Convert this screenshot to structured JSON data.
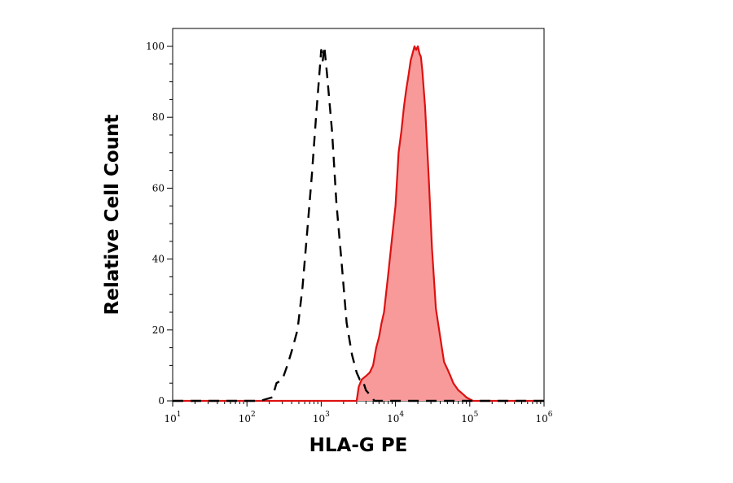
{
  "chart_data": {
    "type": "area",
    "xlabel": "HLA-G PE",
    "ylabel": "Relative Cell Count",
    "x_scale": "log",
    "xlim": [
      10,
      1000000
    ],
    "ylim": [
      0,
      100
    ],
    "y_ticks": [
      "0",
      "20",
      "40",
      "60",
      "80",
      "100"
    ],
    "x_ticks": [
      {
        "base": "10",
        "exp": "1"
      },
      {
        "base": "10",
        "exp": "2"
      },
      {
        "base": "10",
        "exp": "3"
      },
      {
        "base": "10",
        "exp": "4"
      },
      {
        "base": "10",
        "exp": "5"
      },
      {
        "base": "10",
        "exp": "6"
      }
    ],
    "grid": false,
    "legend": "none",
    "colors": {
      "stained_fill": "#f99a9a",
      "stained_line": "#dd1111",
      "control_line": "#000000"
    },
    "series": [
      {
        "style": "dashed-line",
        "x": [
          10,
          150,
          220,
          250,
          300,
          350,
          400,
          480,
          560,
          650,
          750,
          850,
          950,
          1000,
          1050,
          1100,
          1200,
          1400,
          1600,
          1900,
          2200,
          2600,
          3000,
          3300,
          3600,
          4000,
          4400,
          4800,
          5200,
          6000,
          10000,
          100000,
          1000000
        ],
        "y": [
          0,
          0,
          1,
          5,
          6,
          10,
          14,
          20,
          32,
          48,
          64,
          80,
          93,
          99,
          96,
          100,
          92,
          76,
          56,
          38,
          22,
          13,
          8,
          6,
          6,
          3,
          2,
          1,
          0,
          0,
          0,
          0,
          0
        ]
      },
      {
        "style": "filled",
        "x": [
          10,
          3000,
          3200,
          3500,
          4000,
          4500,
          5000,
          5500,
          6000,
          6500,
          7000,
          8000,
          9000,
          10000,
          11000,
          12000,
          13000,
          14000,
          15000,
          16000,
          17000,
          18000,
          19000,
          20000,
          21000,
          22000,
          23000,
          25000,
          28000,
          31000,
          35000,
          40000,
          45000,
          50000,
          55000,
          60000,
          70000,
          80000,
          90000,
          110000,
          150000,
          1000000
        ],
        "y": [
          0,
          0,
          4,
          6,
          7,
          8,
          10,
          15,
          18,
          22,
          25,
          36,
          46,
          55,
          70,
          76,
          83,
          88,
          92,
          96,
          98,
          100,
          99,
          100,
          98,
          97,
          93,
          83,
          63,
          43,
          26,
          18,
          11,
          9,
          7,
          5,
          3,
          2,
          1,
          0,
          0,
          0
        ]
      }
    ]
  }
}
